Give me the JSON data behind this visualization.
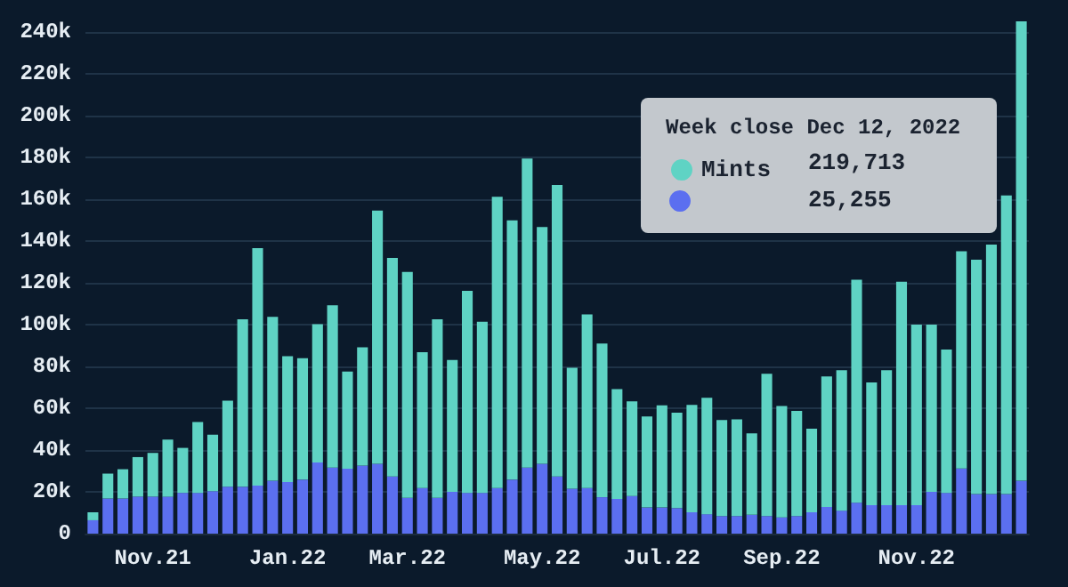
{
  "chart_data": {
    "type": "bar",
    "stacked": true,
    "categories": [
      null,
      null,
      null,
      null,
      "Nov.21",
      null,
      null,
      null,
      null,
      null,
      null,
      null,
      null,
      "Jan.22",
      null,
      null,
      null,
      null,
      null,
      null,
      null,
      "Mar.22",
      null,
      null,
      null,
      null,
      null,
      null,
      null,
      null,
      "May.22",
      null,
      null,
      null,
      null,
      null,
      null,
      null,
      "Jul.22",
      null,
      null,
      null,
      null,
      null,
      null,
      null,
      "Sep.22",
      null,
      null,
      null,
      null,
      null,
      null,
      null,
      null,
      "Nov.22",
      null,
      null,
      null,
      null,
      null,
      null,
      null
    ],
    "series": [
      {
        "color": "#5b6ff0",
        "values": [
          6400,
          16800,
          16800,
          17700,
          17700,
          17700,
          19500,
          19500,
          20300,
          22400,
          22400,
          23000,
          25300,
          24700,
          25800,
          34000,
          31600,
          31000,
          32500,
          33400,
          27300,
          17100,
          21800,
          17100,
          20000,
          19500,
          19500,
          21800,
          25800,
          31600,
          33400,
          27300,
          21500,
          21800,
          17400,
          16600,
          18000,
          12500,
          12500,
          12200,
          10200,
          9300,
          8400,
          8400,
          9000,
          8400,
          7800,
          8400,
          10200,
          12800,
          11000,
          14800,
          13600,
          13600,
          13600,
          13600,
          20000,
          19500,
          31100,
          18900,
          18900,
          18900,
          25255
        ]
      },
      {
        "name": "Mints",
        "color": "#5fd3c4",
        "values": [
          3800,
          11900,
          14000,
          18900,
          20900,
          27300,
          21500,
          33900,
          27000,
          41200,
          80100,
          113500,
          78400,
          60100,
          58100,
          66200,
          77600,
          46500,
          56600,
          121100,
          104500,
          108000,
          65000,
          85400,
          63000,
          96600,
          81800,
          139300,
          124000,
          147800,
          113200,
          139400,
          57800,
          83000,
          73500,
          52500,
          45300,
          43500,
          48800,
          45600,
          51400,
          55700,
          45900,
          46200,
          38900,
          68000,
          53200,
          50300,
          40000,
          62400,
          67100,
          106600,
          58700,
          64500,
          106900,
          86300,
          79900,
          68500,
          103900,
          112100,
          119300,
          142800,
          219713
        ]
      }
    ],
    "yticks": [
      {
        "value": 0,
        "label": "0"
      },
      {
        "value": 20000,
        "label": "20k"
      },
      {
        "value": 40000,
        "label": "40k"
      },
      {
        "value": 60000,
        "label": "60k"
      },
      {
        "value": 80000,
        "label": "80k"
      },
      {
        "value": 100000,
        "label": "100k"
      },
      {
        "value": 120000,
        "label": "120k"
      },
      {
        "value": 140000,
        "label": "140k"
      },
      {
        "value": 160000,
        "label": "160k"
      },
      {
        "value": 180000,
        "label": "180k"
      },
      {
        "value": 200000,
        "label": "200k"
      },
      {
        "value": 220000,
        "label": "220k"
      },
      {
        "value": 240000,
        "label": "240k"
      }
    ],
    "ylim": [
      0,
      244968
    ],
    "grid": "y",
    "legend": "top right",
    "annotations": [
      "Week close Dec 12, 2022",
      "219,713",
      "25,255"
    ]
  }
}
